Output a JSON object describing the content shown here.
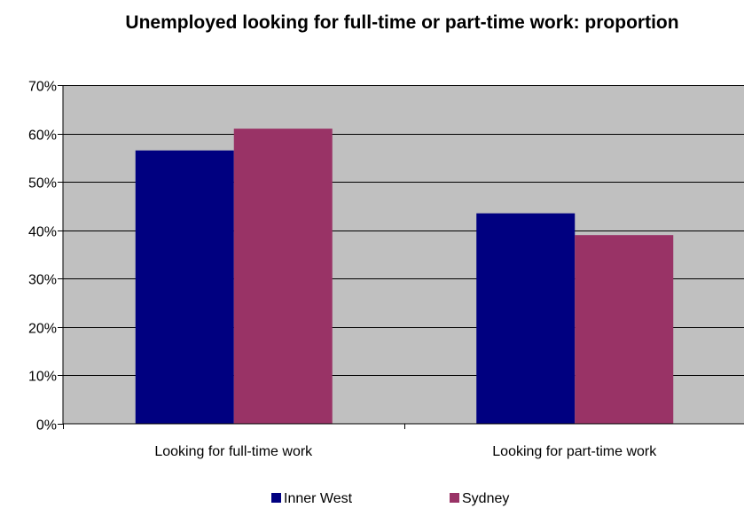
{
  "chart_data": {
    "type": "bar",
    "title": "Unemployed looking for full-time or part-time work: proportion",
    "categories": [
      "Looking for full-time work",
      "Looking for part-time work"
    ],
    "series": [
      {
        "name": "Inner West",
        "values": [
          56.5,
          43.5
        ],
        "color": "#000080"
      },
      {
        "name": "Sydney",
        "values": [
          61.0,
          39.0
        ],
        "color": "#993366"
      }
    ],
    "ylim": [
      0,
      70
    ],
    "yticks": [
      0,
      10,
      20,
      30,
      40,
      50,
      60,
      70
    ],
    "ytick_labels": [
      "0%",
      "10%",
      "20%",
      "30%",
      "40%",
      "50%",
      "60%",
      "70%"
    ],
    "xlabel": "",
    "ylabel": "",
    "grid": true,
    "plot_background": "#c0c0c0",
    "legend_position": "bottom"
  }
}
